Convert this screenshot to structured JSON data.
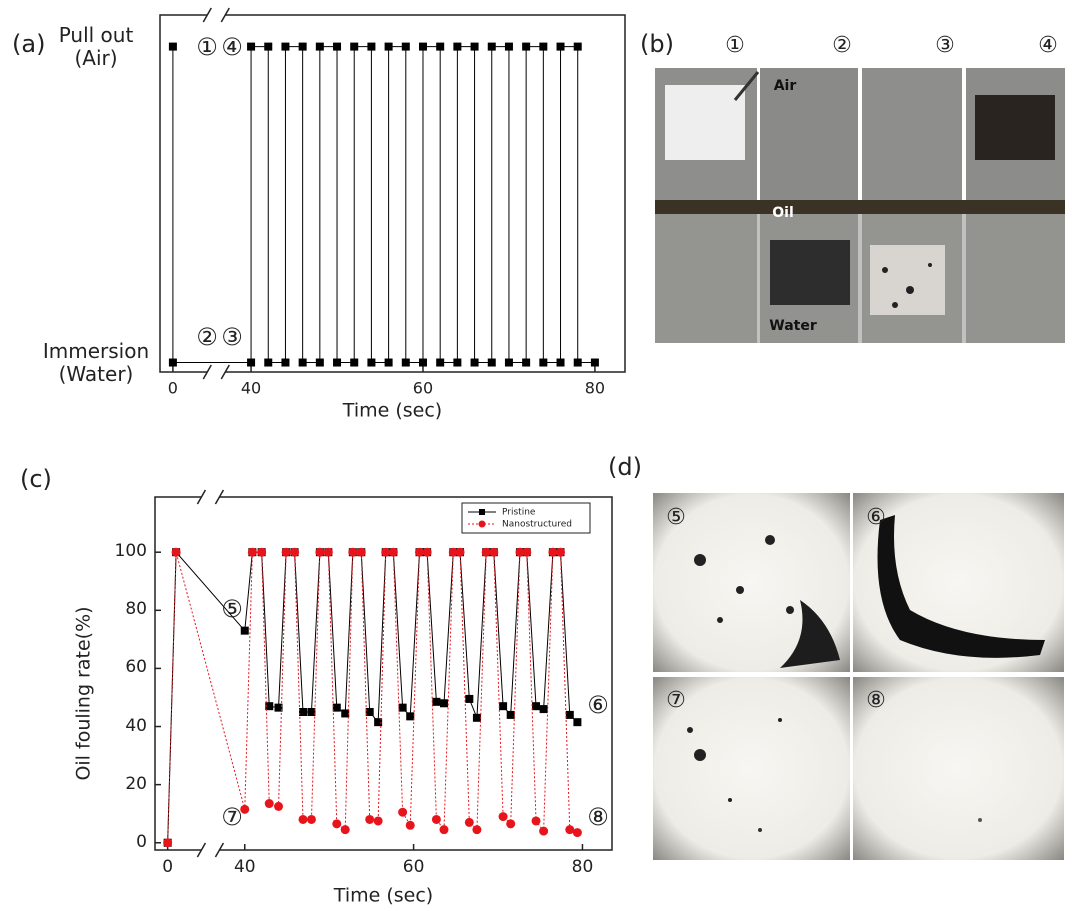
{
  "chart_data": [
    {
      "type": "line",
      "panel_label": "(a)",
      "xlabel": "Time (sec)",
      "x": [
        0,
        0,
        40,
        40,
        42,
        42,
        44,
        44,
        46,
        46,
        48,
        48,
        50,
        50,
        52,
        52,
        54,
        54,
        56,
        56,
        58,
        58,
        60,
        60,
        62,
        62,
        64,
        64,
        66,
        66,
        68,
        68,
        70,
        70,
        72,
        72,
        74,
        74,
        76,
        76,
        78,
        78,
        80
      ],
      "values": [
        1,
        0,
        0,
        1,
        1,
        0,
        0,
        1,
        1,
        0,
        0,
        1,
        1,
        0,
        0,
        1,
        1,
        0,
        0,
        1,
        1,
        0,
        0,
        1,
        1,
        0,
        0,
        1,
        1,
        0,
        0,
        1,
        1,
        0,
        0,
        1,
        1,
        0,
        0,
        1,
        1,
        0,
        0
      ],
      "color": "#000000",
      "marker": "square",
      "linestyle": "solid",
      "xlim": [
        -1.5,
        83.5
      ],
      "x_break": [
        4,
        37
      ],
      "xticks": [
        0,
        40,
        60,
        80
      ],
      "ylim": [
        -0.03,
        1.1
      ],
      "yticks": [
        {
          "value": 1,
          "label": "Pull out (Air)"
        },
        {
          "value": 0,
          "label": "Immersion (Water)"
        }
      ],
      "grid": false,
      "annotations": [
        "①",
        "②",
        "③",
        "④"
      ]
    },
    {
      "type": "line",
      "panel_label": "(c)",
      "xlabel": "Time (sec)",
      "ylabel": "Oil fouling rate(%)",
      "x": [
        0,
        1,
        40,
        40.9,
        42,
        42.9,
        44,
        44.9,
        45.9,
        46.9,
        47.9,
        48.9,
        49.9,
        50.9,
        51.9,
        52.8,
        53.8,
        54.8,
        55.8,
        56.7,
        57.6,
        58.7,
        59.6,
        60.7,
        61.6,
        62.7,
        63.6,
        64.7,
        65.5,
        66.6,
        67.5,
        68.6,
        69.5,
        70.6,
        71.5,
        72.6,
        73.4,
        74.5,
        75.4,
        76.5,
        77.4,
        78.5,
        79.4
      ],
      "series": [
        {
          "name": "Pristine",
          "color": "#000000",
          "marker": "square",
          "linestyle": "solid",
          "values": [
            0,
            100,
            73,
            100,
            100,
            47,
            46.5,
            100,
            100,
            45,
            45,
            100,
            100,
            46.5,
            44.5,
            100,
            100,
            45,
            41.5,
            100,
            100,
            46.5,
            43.5,
            100,
            100,
            48.5,
            48,
            100,
            100,
            49.5,
            43,
            100,
            100,
            47,
            44,
            100,
            100,
            47,
            46,
            100,
            100,
            44,
            41.5
          ]
        },
        {
          "name": "Nanostructured",
          "color": "#e8141c",
          "marker": "circle",
          "linestyle": "dotted",
          "values": [
            0,
            100,
            11.5,
            100,
            100,
            13.5,
            12.5,
            100,
            100,
            8,
            8,
            100,
            100,
            6.5,
            4.5,
            100,
            100,
            8,
            7.5,
            100,
            100,
            10.5,
            6,
            100,
            100,
            8,
            4.5,
            100,
            100,
            7,
            4.5,
            100,
            100,
            9,
            6.5,
            100,
            100,
            7.5,
            4,
            100,
            100,
            4.5,
            3.5
          ]
        }
      ],
      "xlim": [
        -1.5,
        83.5
      ],
      "x_break": [
        4,
        37
      ],
      "xticks": [
        0,
        40,
        60,
        80
      ],
      "ylim": [
        -2.5,
        119
      ],
      "yticks": [
        0,
        20,
        40,
        60,
        80,
        100
      ],
      "grid": false,
      "legend": "upper right",
      "annotations": [
        "⑤",
        "⑥",
        "⑦",
        "⑧"
      ]
    }
  ],
  "photos": {
    "b": {
      "label": "(b)",
      "numbers": [
        "①",
        "②",
        "③",
        "④"
      ],
      "texts": [
        "Air",
        "Oil",
        "Water"
      ]
    },
    "d": {
      "label": "(d)",
      "numbers": [
        "⑤",
        "⑥",
        "⑦",
        "⑧"
      ]
    }
  }
}
